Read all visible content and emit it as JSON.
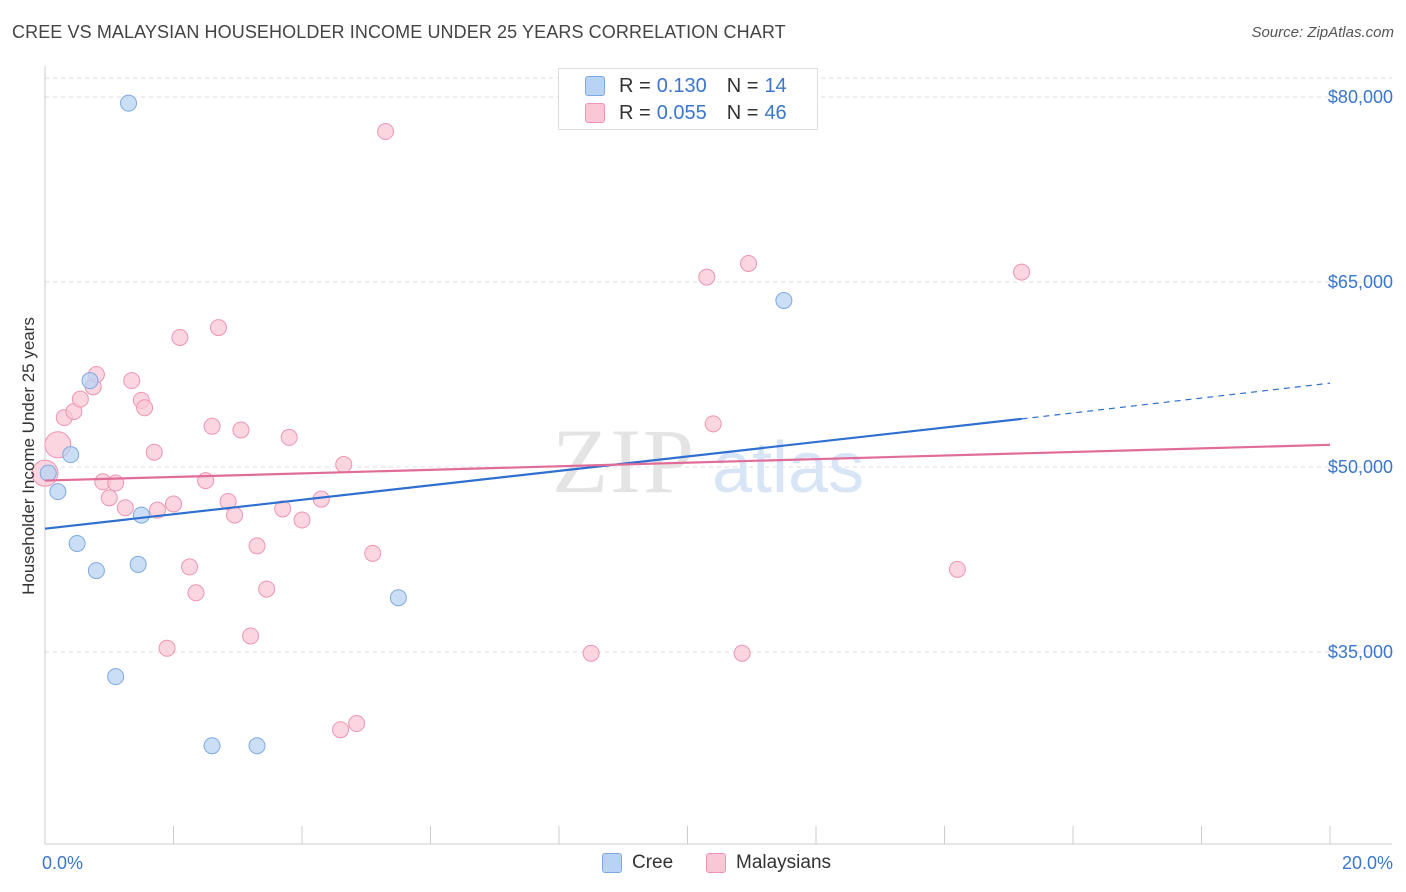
{
  "header": {
    "title": "CREE VS MALAYSIAN HOUSEHOLDER INCOME UNDER 25 YEARS CORRELATION CHART",
    "source": "Source: ZipAtlas.com"
  },
  "watermark": {
    "zip": "ZIP",
    "atlas": "atlas"
  },
  "legend": {
    "r_label": "R =",
    "n_label": "N =",
    "rows": [
      {
        "r": "0.130",
        "n": "14"
      },
      {
        "r": "0.055",
        "n": "46"
      }
    ]
  },
  "bottom_legend": {
    "items": [
      "Cree",
      "Malaysians"
    ]
  },
  "colors": {
    "cree_fill": "#b8d3f3",
    "cree_stroke": "#7ea9e0",
    "cree_line": "#2f6fcf",
    "mal_fill": "#f9c7d6",
    "mal_stroke": "#ee95b3",
    "mal_line": "#e06c97",
    "axis_text": "#3a76cc",
    "grid": "#dddddd"
  },
  "chart_data": {
    "type": "scatter",
    "title": "CREE VS MALAYSIAN HOUSEHOLDER INCOME UNDER 25 YEARS CORRELATION CHART",
    "xlabel": "",
    "ylabel": "Householder Income Under 25 years",
    "xlim": [
      0,
      20
    ],
    "ylim": [
      20000,
      82000
    ],
    "x_tick_labels": [
      "0.0%",
      "20.0%"
    ],
    "y_ticks": [
      35000,
      50000,
      65000,
      80000
    ],
    "y_tick_labels": [
      "$35,000",
      "$50,000",
      "$65,000",
      "$80,000"
    ],
    "grid": true,
    "legend_position": "top-center",
    "series": [
      {
        "name": "Cree",
        "r": 0.13,
        "n": 14,
        "trend": {
          "x0": 0,
          "y0": 45000,
          "x1": 15.2,
          "y1": 53900,
          "dash_x1": 20,
          "dash_y1": 56800
        },
        "points": [
          [
            1.3,
            79500
          ],
          [
            0.05,
            49500
          ],
          [
            0.2,
            48000
          ],
          [
            0.4,
            51000
          ],
          [
            0.7,
            57000
          ],
          [
            0.5,
            43800
          ],
          [
            0.8,
            41600
          ],
          [
            1.5,
            46100
          ],
          [
            1.45,
            42100
          ],
          [
            1.1,
            33000
          ],
          [
            2.6,
            27400
          ],
          [
            3.3,
            27400
          ],
          [
            5.5,
            39400
          ],
          [
            11.5,
            63500
          ]
        ]
      },
      {
        "name": "Malaysians",
        "r": 0.055,
        "n": 46,
        "trend": {
          "x0": 0,
          "y0": 48900,
          "x1": 20,
          "y1": 51800
        },
        "points": [
          [
            0.0,
            49500
          ],
          [
            0.2,
            51800
          ],
          [
            0.3,
            54000
          ],
          [
            0.45,
            54500
          ],
          [
            0.55,
            55500
          ],
          [
            0.75,
            56500
          ],
          [
            0.8,
            57500
          ],
          [
            0.9,
            48800
          ],
          [
            1.0,
            47500
          ],
          [
            1.1,
            48700
          ],
          [
            1.25,
            46700
          ],
          [
            1.35,
            57000
          ],
          [
            1.5,
            55400
          ],
          [
            1.55,
            54800
          ],
          [
            1.7,
            51200
          ],
          [
            1.75,
            46500
          ],
          [
            1.9,
            35300
          ],
          [
            2.0,
            47000
          ],
          [
            2.1,
            60500
          ],
          [
            2.25,
            41900
          ],
          [
            2.35,
            39800
          ],
          [
            2.5,
            48900
          ],
          [
            2.6,
            53300
          ],
          [
            2.7,
            61300
          ],
          [
            2.85,
            47200
          ],
          [
            2.95,
            46100
          ],
          [
            3.05,
            53000
          ],
          [
            3.2,
            36300
          ],
          [
            3.3,
            43600
          ],
          [
            3.45,
            40100
          ],
          [
            3.7,
            46600
          ],
          [
            3.8,
            52400
          ],
          [
            4.0,
            45700
          ],
          [
            4.3,
            47400
          ],
          [
            4.6,
            28700
          ],
          [
            4.65,
            50200
          ],
          [
            4.85,
            29200
          ],
          [
            5.1,
            43000
          ],
          [
            5.3,
            77200
          ],
          [
            8.5,
            34900
          ],
          [
            10.3,
            65400
          ],
          [
            10.4,
            53500
          ],
          [
            10.85,
            34900
          ],
          [
            10.95,
            66500
          ],
          [
            14.2,
            41700
          ],
          [
            15.2,
            65800
          ]
        ]
      }
    ]
  }
}
